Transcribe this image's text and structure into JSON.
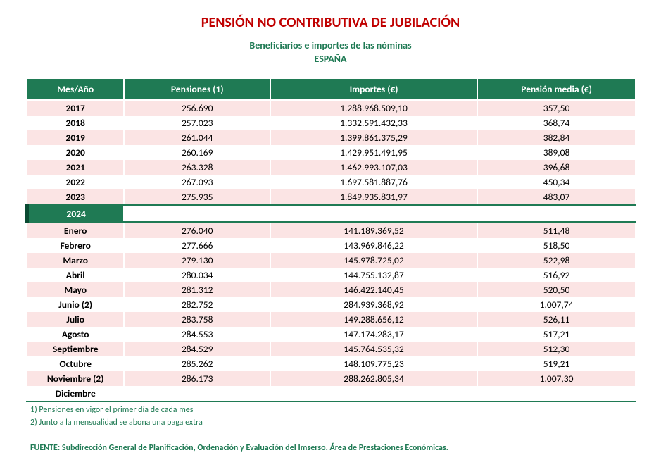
{
  "colors": {
    "title_red": "#c00000",
    "header_green": "#1f7a54",
    "header_green_border": "#0e5a3a",
    "stripe_pink": "#fbe4e4",
    "stripe_white": "#ffffff",
    "footnote_green": "#1f7a54",
    "year_header_dark": "#0a4a32"
  },
  "title": "PENSIÓN NO CONTRIBUTIVA DE JUBILACIÓN",
  "subtitle": "Beneficiarios e importes de las nóminas",
  "country": "ESPAÑA",
  "columns": [
    "Mes/Año",
    "Pensiones (1)",
    "Importes (€)",
    "Pensión media (€)"
  ],
  "annual_rows": [
    {
      "period": "2017",
      "pensiones": "256.690",
      "importes": "1.288.968.509,10",
      "media": "357,50"
    },
    {
      "period": "2018",
      "pensiones": "257.023",
      "importes": "1.332.591.432,33",
      "media": "368,74"
    },
    {
      "period": "2019",
      "pensiones": "261.044",
      "importes": "1.399.861.375,29",
      "media": "382,84"
    },
    {
      "period": "2020",
      "pensiones": "260.169",
      "importes": "1.429.951.491,95",
      "media": "389,08"
    },
    {
      "period": "2021",
      "pensiones": "263.328",
      "importes": "1.462.993.107,03",
      "media": "396,68"
    },
    {
      "period": "2022",
      "pensiones": "267.093",
      "importes": "1.697.581.887,76",
      "media": "450,34"
    },
    {
      "period": "2023",
      "pensiones": "275.935",
      "importes": "1.849.935.831,97",
      "media": "483,07"
    }
  ],
  "year_header": "2024",
  "month_rows": [
    {
      "period": "Enero",
      "pensiones": "276.040",
      "importes": "141.189.369,52",
      "media": "511,48"
    },
    {
      "period": "Febrero",
      "pensiones": "277.666",
      "importes": "143.969.846,22",
      "media": "518,50"
    },
    {
      "period": "Marzo",
      "pensiones": "279.130",
      "importes": "145.978.725,02",
      "media": "522,98"
    },
    {
      "period": "Abril",
      "pensiones": "280.034",
      "importes": "144.755.132,87",
      "media": "516,92"
    },
    {
      "period": "Mayo",
      "pensiones": "281.312",
      "importes": "146.422.140,45",
      "media": "520,50"
    },
    {
      "period": "Junio (2)",
      "pensiones": "282.752",
      "importes": "284.939.368,92",
      "media": "1.007,74"
    },
    {
      "period": "Julio",
      "pensiones": "283.758",
      "importes": "149.288.656,12",
      "media": "526,11"
    },
    {
      "period": "Agosto",
      "pensiones": "284.553",
      "importes": "147.174.283,17",
      "media": "517,21"
    },
    {
      "period": "Septiembre",
      "pensiones": "284.529",
      "importes": "145.764.535,32",
      "media": "512,30"
    },
    {
      "period": "Octubre",
      "pensiones": "285.262",
      "importes": "148.109.775,23",
      "media": "519,21"
    },
    {
      "period": "Noviembre (2)",
      "pensiones": "286.173",
      "importes": "288.262.805,34",
      "media": "1.007,30"
    },
    {
      "period": "Diciembre",
      "pensiones": "",
      "importes": "",
      "media": ""
    }
  ],
  "footnote1": "1) Pensiones en vigor el primer día de cada mes",
  "footnote2": "2) Junto a la mensualidad se abona una paga extra",
  "source": "FUENTE: Subdirección General de Planificación, Ordenación y Evaluación del Imserso. Área de Prestaciones Económicas."
}
